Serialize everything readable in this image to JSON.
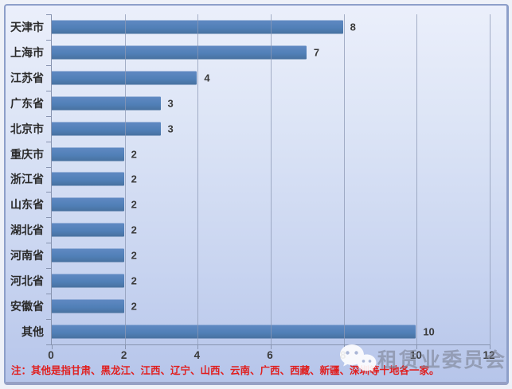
{
  "chart_data": {
    "type": "bar",
    "orientation": "horizontal",
    "title": "",
    "xlabel": "",
    "ylabel": "",
    "categories": [
      "天津市",
      "上海市",
      "江苏省",
      "广东省",
      "北京市",
      "重庆市",
      "浙江省",
      "山东省",
      "湖北省",
      "河南省",
      "河北省",
      "安徽省",
      "其他"
    ],
    "values": [
      8,
      7,
      4,
      3,
      3,
      2,
      2,
      2,
      2,
      2,
      2,
      2,
      10
    ],
    "xlim": [
      0,
      12
    ],
    "x_ticks": [
      "0",
      "2",
      "4",
      "6",
      "8",
      "10",
      "12"
    ],
    "grid": "vertical-gridlines",
    "legend": "none",
    "data_labels": "outside-end",
    "bar_color": "#4f81bd"
  },
  "note": {
    "text": "注：其他是指甘肃、黑龙江、江西、辽宁、山西、云南、广西、西藏、新疆、深圳等十地各一家。"
  },
  "watermark": {
    "icon": "wechat-icon",
    "text": "租赁业委员会"
  },
  "colors": {
    "bar": "#4f81bd",
    "note_red": "#e01f1f",
    "background_top": "#ebeffb",
    "background_bottom": "#b6c5ea",
    "gridline": "#8c98b4",
    "axis": "#8793af",
    "watermark_gray": "#7d8394"
  }
}
